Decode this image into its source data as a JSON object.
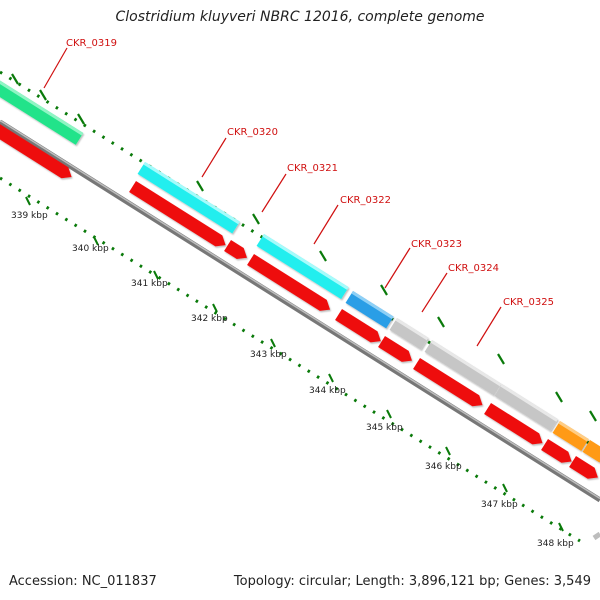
{
  "title": "Clostridium kluyveri NBRC 12016, complete genome",
  "footer": {
    "accession": "Accession: NC_011837",
    "topology": "Topology: circular; Length: 3,896,121 bp; Genes: 3,549"
  },
  "colors": {
    "backbone": "#8a8a8a",
    "tick": "#0a7a0a",
    "label_line": "#d01010",
    "label_text": "#d01010",
    "gene_forward": "#ee1111",
    "gene_green": "#22e38a",
    "gene_cyan": "#22eeee",
    "gene_blue": "#2a9ee6",
    "gene_gray": "#c6c6c6",
    "gene_orange": "#ff9a12"
  },
  "scale_labels": [
    "339 kbp",
    "340 kbp",
    "341 kbp",
    "342 kbp",
    "343 kbp",
    "344 kbp",
    "345 kbp",
    "346 kbp",
    "347 kbp",
    "348 kbp"
  ],
  "gene_labels": [
    "CKR_0319",
    "CKR_0320",
    "CKR_0321",
    "CKR_0322",
    "CKR_0323",
    "CKR_0324",
    "CKR_0325"
  ]
}
